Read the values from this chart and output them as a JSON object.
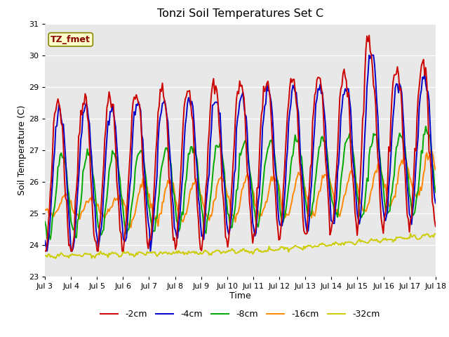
{
  "title": "Tonzi Soil Temperatures Set C",
  "xlabel": "Time",
  "ylabel": "Soil Temperature (C)",
  "ylim": [
    23.0,
    31.0
  ],
  "yticks": [
    23.0,
    24.0,
    25.0,
    26.0,
    27.0,
    28.0,
    29.0,
    30.0,
    31.0
  ],
  "x_labels": [
    "Jul 3",
    "Jul 4",
    "Jul 5",
    "Jul 6",
    "Jul 7",
    "Jul 8",
    "Jul 9",
    "Jul 10",
    "Jul 11",
    "Jul 12",
    "Jul 13",
    "Jul 14",
    "Jul 15",
    "Jul 16",
    "Jul 17",
    "Jul 18"
  ],
  "legend_label": "TZ_fmet",
  "legend_bg": "#ffffcc",
  "legend_border": "#888800",
  "colors": {
    "-2cm": "#cc0000",
    "-4cm": "#0000cc",
    "-8cm": "#00aa00",
    "-16cm": "#ff8800",
    "-32cm": "#cccc00"
  },
  "line_width": 1.4,
  "bg_color": "#e8e8e8",
  "fig_color": "#ffffff"
}
